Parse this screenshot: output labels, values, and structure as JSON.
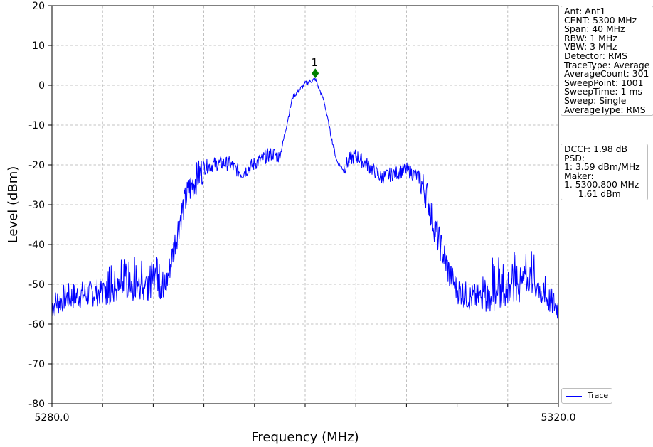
{
  "chart_data": {
    "type": "line",
    "title": "",
    "xlabel": "Frequency (MHz)",
    "ylabel": "Level (dBm)",
    "xlim": [
      5280,
      5320
    ],
    "ylim": [
      -80,
      20
    ],
    "x_tick_labels": [
      {
        "value": 5280,
        "label": "5280.0"
      },
      {
        "value": 5320,
        "label": "5320.0"
      }
    ],
    "x_minor_ticks": [
      5284,
      5288,
      5292,
      5296,
      5300,
      5304,
      5308,
      5312,
      5316
    ],
    "y_ticks": [
      20,
      10,
      0,
      -10,
      -20,
      -30,
      -40,
      -50,
      -60,
      -70,
      -80
    ],
    "grid": true,
    "legend": {
      "placement": "bottom-right",
      "entries": [
        "Trace"
      ]
    },
    "series": [
      {
        "name": "Trace",
        "color": "#0000ff",
        "x": [
          5280.0,
          5281.0,
          5282.0,
          5283.0,
          5284.0,
          5285.0,
          5286.0,
          5287.0,
          5288.0,
          5289.0,
          5289.6,
          5290.2,
          5290.8,
          5291.4,
          5292.0,
          5293.0,
          5294.0,
          5295.0,
          5296.0,
          5297.0,
          5297.5,
          5298.0,
          5299.0,
          5300.0,
          5300.8,
          5301.5,
          5302.0,
          5302.5,
          5303.0,
          5303.5,
          5304.0,
          5305.0,
          5306.0,
          5307.0,
          5308.0,
          5309.0,
          5309.6,
          5310.2,
          5310.8,
          5311.4,
          5312.0,
          5313.0,
          5314.0,
          5315.0,
          5316.0,
          5317.0,
          5318.0,
          5319.0,
          5320.0
        ],
        "y": [
          -55.0,
          -53.0,
          -52.5,
          -52.0,
          -51.5,
          -51.0,
          -51.0,
          -51.0,
          -50.5,
          -50.0,
          -41.0,
          -32.0,
          -26.0,
          -23.0,
          -20.5,
          -19.5,
          -19.5,
          -22.0,
          -19.5,
          -17.5,
          -17.0,
          -18.0,
          -3.0,
          0.5,
          1.6,
          -4.0,
          -12.0,
          -19.0,
          -21.0,
          -18.5,
          -17.5,
          -20.0,
          -23.0,
          -22.0,
          -21.0,
          -23.0,
          -27.0,
          -35.0,
          -41.0,
          -47.0,
          -51.0,
          -53.0,
          -53.0,
          -53.0,
          -51.5,
          -51.0,
          -49.0,
          -53.0,
          -55.5
        ]
      }
    ],
    "annotations": [
      {
        "type": "marker",
        "label": "1",
        "x": 5300.8,
        "y": 3.0,
        "color": "#008000"
      }
    ]
  },
  "info_params": {
    "lines": [
      "Ant: Ant1",
      "CENT: 5300 MHz",
      "Span: 40 MHz",
      "RBW: 1 MHz",
      "VBW: 3 MHz",
      "Detector: RMS",
      "TraceType: Average",
      "AverageCount: 301",
      "SweepPoint: 1001",
      "SweepTime: 1 ms",
      "Sweep: Single",
      "AverageType: RMS"
    ]
  },
  "info_measure": {
    "lines": [
      "DCCF: 1.98 dB",
      "PSD:",
      "1: 3.59 dBm/MHz",
      "Maker:",
      "1. 5300.800 MHz",
      "     1.61 dBm"
    ]
  }
}
